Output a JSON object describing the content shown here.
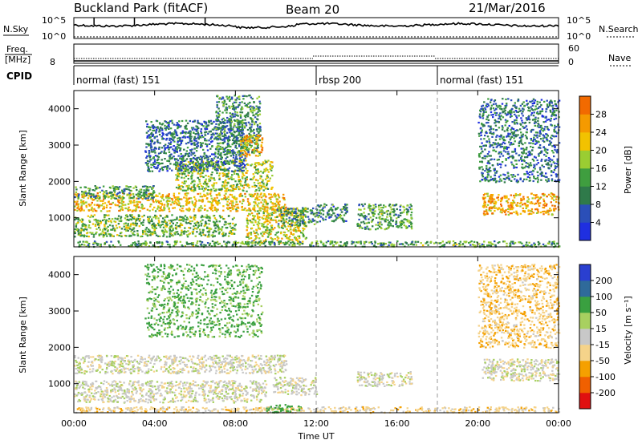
{
  "header": {
    "station": "Buckland Park (fitACF)",
    "beam": "Beam 20",
    "date": "21/Mar/2016"
  },
  "top_panels": {
    "nsky_label": "N.Sky",
    "nsky_ticks": [
      "10^5",
      "10^0"
    ],
    "nsearch_label": "N.Search",
    "nsearch_ticks": [
      "10^5",
      "10^0"
    ],
    "freq_label": "Freq.",
    "freq_unit": "[MHz]",
    "freq_ticks": [
      "8"
    ],
    "nave_label": "Nave",
    "nave_ticks": [
      "60",
      "0"
    ],
    "cpid_label": "CPID",
    "cpid_segments": [
      {
        "label": "normal (fast) 151",
        "start_h": 0,
        "end_h": 12
      },
      {
        "label": "rbsp 200",
        "start_h": 12,
        "end_h": 18
      },
      {
        "label": "normal (fast) 151",
        "start_h": 18,
        "end_h": 24
      }
    ]
  },
  "colors": {
    "power": [
      "#1f2fe0",
      "#2b4fb8",
      "#2f7a4a",
      "#3f9e3f",
      "#9acd32",
      "#f2c200",
      "#f59a00",
      "#f26a00",
      "#e02010"
    ],
    "velocity": [
      "#e01010",
      "#f06000",
      "#f5a000",
      "#f5d38a",
      "#c8c8c8",
      "#a8d060",
      "#3aa040",
      "#2f6a9a",
      "#2a3fd0"
    ]
  },
  "chart_data": [
    {
      "type": "heatmap",
      "name": "power",
      "ylabel": "Slant Range [km]",
      "ylim": [
        200,
        4500
      ],
      "yticks": [
        1000,
        2000,
        3000,
        4000
      ],
      "xlim_hours": [
        0,
        24
      ],
      "colorbar_label": "Power [dB]",
      "colorbar_ticks": [
        "4",
        "8",
        "12",
        "16",
        "20",
        "24",
        "28"
      ],
      "colorbar_range": [
        0,
        32
      ],
      "features": [
        {
          "t_start": 0,
          "t_end": 10.5,
          "r_start": 1200,
          "r_end": 1700,
          "level": 20
        },
        {
          "t_start": 0,
          "t_end": 4,
          "r_start": 1550,
          "r_end": 1900,
          "level": 10
        },
        {
          "t_start": 5,
          "t_end": 9.8,
          "r_start": 1750,
          "r_end": 2600,
          "level": 16
        },
        {
          "t_start": 3.5,
          "t_end": 8.5,
          "r_start": 2300,
          "r_end": 3700,
          "level": 8
        },
        {
          "t_start": 7,
          "t_end": 9.2,
          "r_start": 2800,
          "r_end": 4400,
          "level": 10
        },
        {
          "t_start": 8.2,
          "t_end": 9.3,
          "r_start": 2700,
          "r_end": 3300,
          "level": 22
        },
        {
          "t_start": 0,
          "t_end": 8,
          "r_start": 500,
          "r_end": 1100,
          "level": 14
        },
        {
          "t_start": 8.5,
          "t_end": 11.5,
          "r_start": 300,
          "r_end": 1300,
          "level": 18
        },
        {
          "t_start": 10,
          "t_end": 12,
          "r_start": 800,
          "r_end": 1300,
          "level": 10
        },
        {
          "t_start": 12,
          "t_end": 13.5,
          "r_start": 900,
          "r_end": 1400,
          "level": 9
        },
        {
          "t_start": 14,
          "t_end": 16.7,
          "r_start": 700,
          "r_end": 1400,
          "level": 12
        },
        {
          "t_start": 20.2,
          "t_end": 24,
          "r_start": 1100,
          "r_end": 1700,
          "level": 22
        },
        {
          "t_start": 20,
          "t_end": 24,
          "r_start": 2000,
          "r_end": 4300,
          "level": 8
        },
        {
          "t_start": 0,
          "t_end": 24,
          "r_start": 220,
          "r_end": 380,
          "level": 12
        }
      ]
    },
    {
      "type": "heatmap",
      "name": "velocity",
      "ylabel": "Slant Range [km]",
      "ylim": [
        200,
        4500
      ],
      "yticks": [
        1000,
        2000,
        3000,
        4000
      ],
      "xlabel": "Time UT",
      "xlim_hours": [
        0,
        24
      ],
      "xticks": [
        "00:00",
        "04:00",
        "08:00",
        "12:00",
        "16:00",
        "20:00",
        "00:00"
      ],
      "colorbar_label": "Velocity [m s⁻¹]",
      "colorbar_ticks": [
        "-200",
        "-100",
        "-50",
        "-15",
        "15",
        "50",
        "100",
        "200"
      ],
      "colorbar_range": [
        -250,
        250
      ],
      "features": [
        {
          "t_start": 0,
          "t_end": 10.5,
          "r_start": 1300,
          "r_end": 1800,
          "level": 0
        },
        {
          "t_start": 0,
          "t_end": 9.5,
          "r_start": 500,
          "r_end": 1100,
          "level": 0
        },
        {
          "t_start": 3.5,
          "t_end": 9.3,
          "r_start": 2300,
          "r_end": 4300,
          "level": 60
        },
        {
          "t_start": 9.8,
          "t_end": 12,
          "r_start": 700,
          "r_end": 1200,
          "level": 0
        },
        {
          "t_start": 14,
          "t_end": 16.7,
          "r_start": 950,
          "r_end": 1350,
          "level": 0
        },
        {
          "t_start": 20.2,
          "t_end": 24,
          "r_start": 1100,
          "r_end": 1700,
          "level": 0
        },
        {
          "t_start": 20,
          "t_end": 24,
          "r_start": 2000,
          "r_end": 4300,
          "level": -40
        },
        {
          "t_start": 0,
          "t_end": 24,
          "r_start": 220,
          "r_end": 380,
          "level": -30
        },
        {
          "t_start": 9.5,
          "t_end": 11.2,
          "r_start": 220,
          "r_end": 450,
          "level": 70
        }
      ]
    }
  ]
}
